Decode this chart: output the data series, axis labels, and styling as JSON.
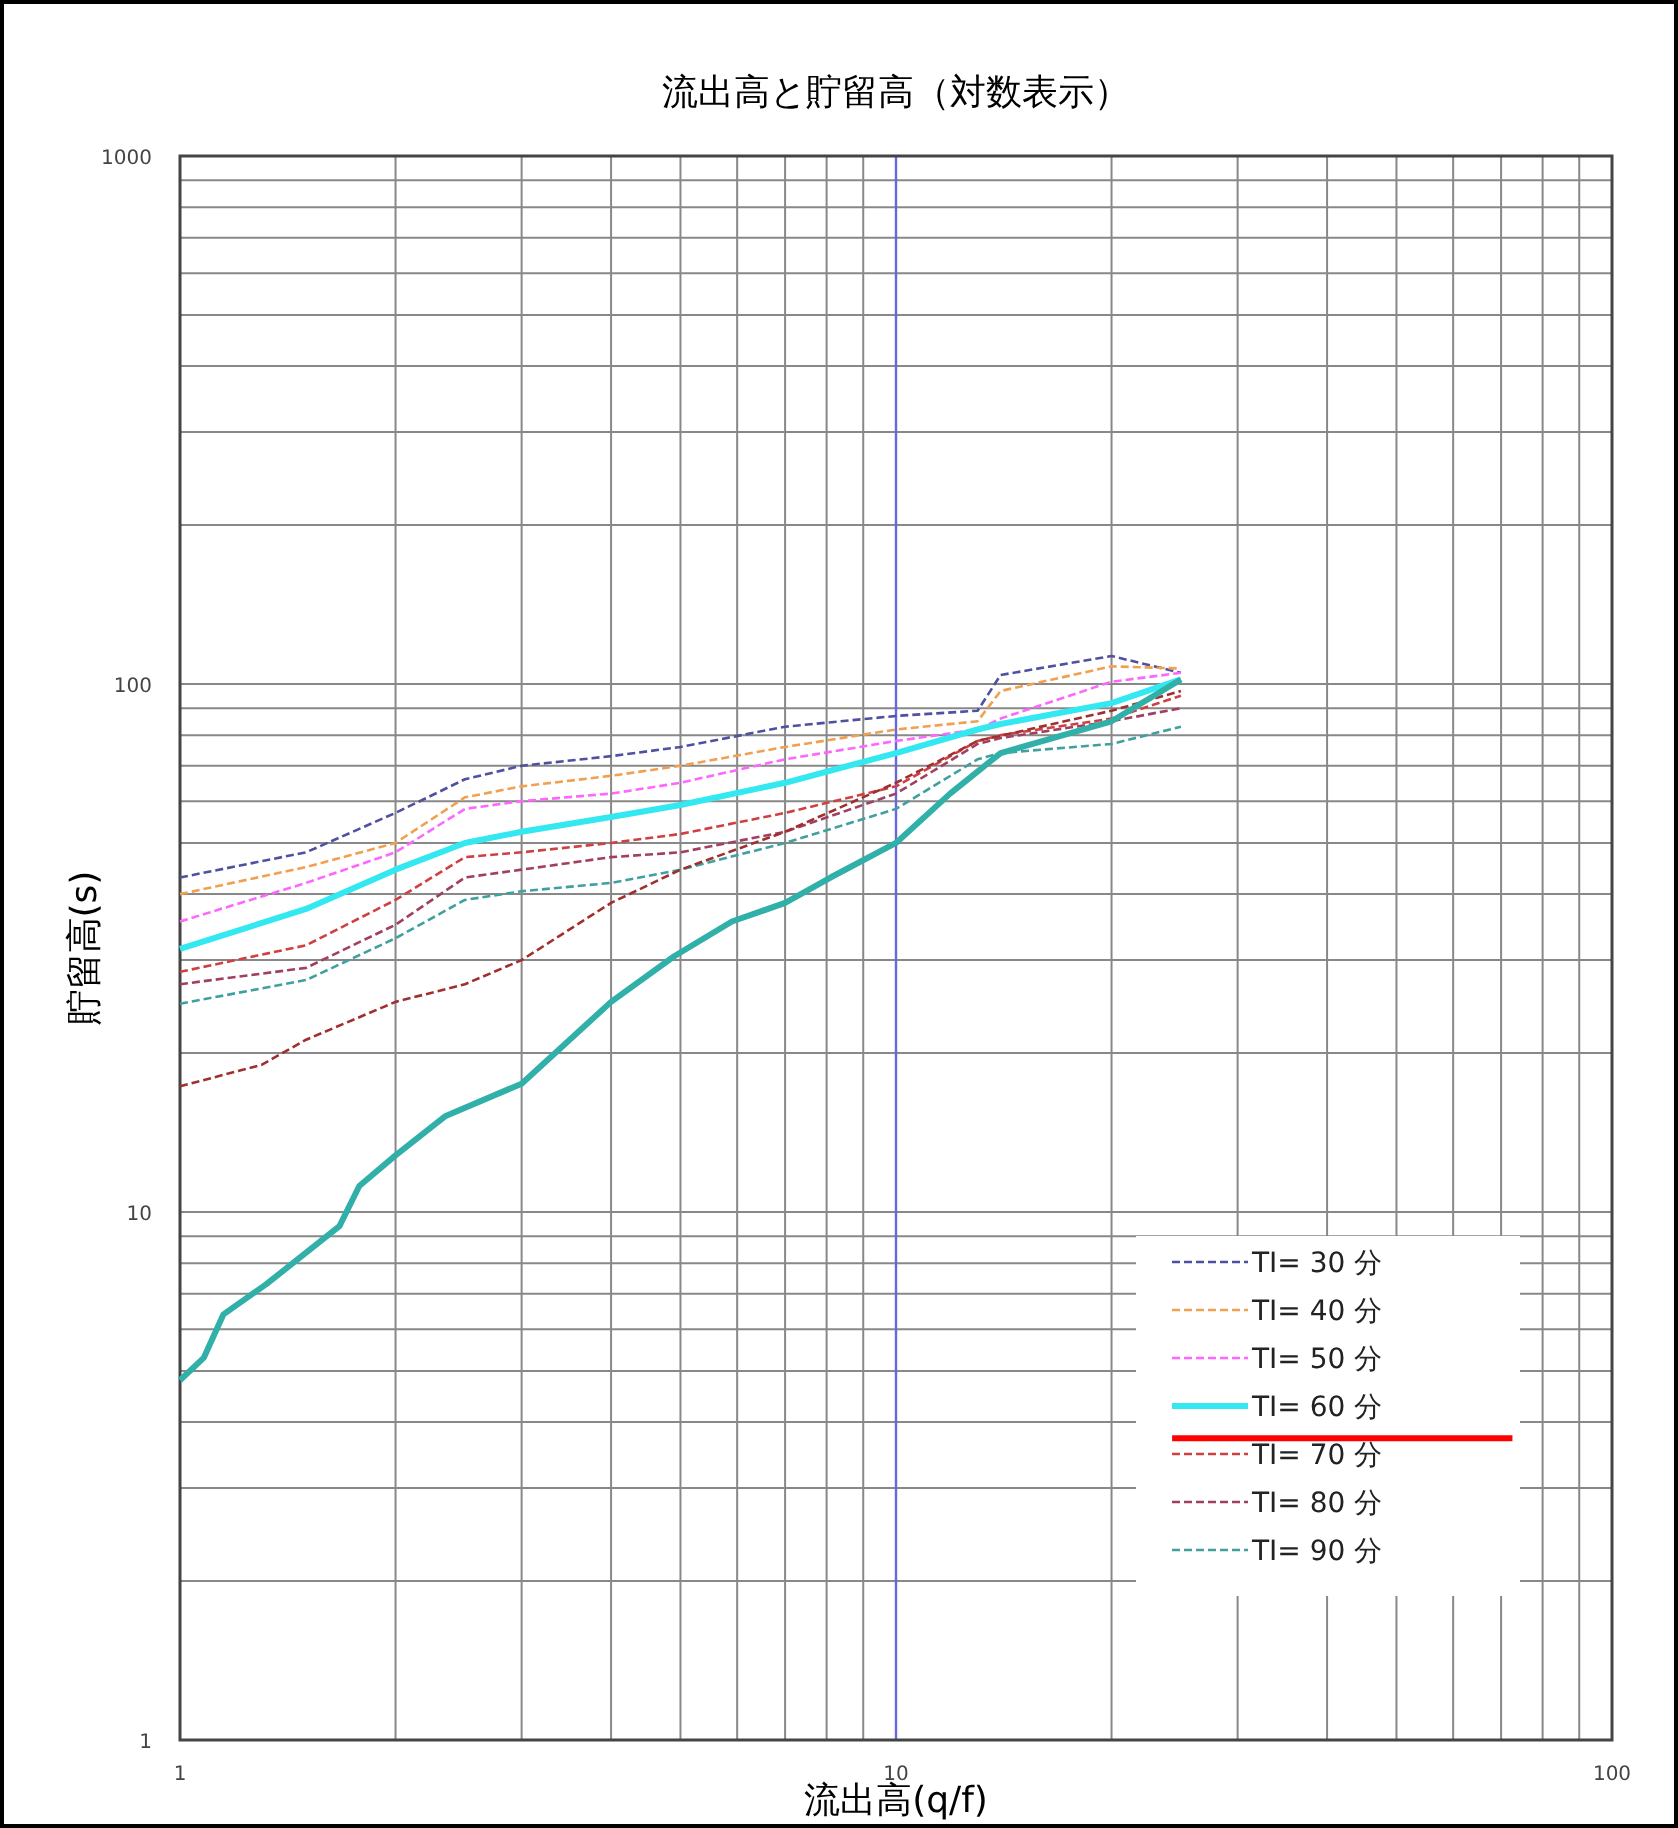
{
  "chart_data": {
    "type": "line",
    "title": "流出高と貯留高（対数表示）",
    "xlabel": "流出高(q/f)",
    "ylabel": "貯留高(s)",
    "log": "xy",
    "xlim": [
      1,
      100
    ],
    "ylim": [
      1,
      1000
    ],
    "xticks": [
      1,
      10,
      100
    ],
    "yticks": [
      1,
      10,
      100,
      1000
    ],
    "grid": true,
    "legend": "bottom right",
    "ref_lines": [
      {
        "axis": "x",
        "value": 10,
        "color": "#6666dd"
      }
    ],
    "x": [
      1,
      1.5,
      2,
      2.5,
      3,
      4,
      5,
      7,
      10,
      13,
      14,
      20,
      25
    ],
    "series": [
      {
        "name": "TI= 30  分",
        "color": "#5050a0",
        "line_style": "dashed",
        "values": [
          43,
          48,
          57,
          66,
          70,
          73,
          76,
          83,
          87,
          89,
          104,
          113,
          105
        ]
      },
      {
        "name": "TI= 40  分",
        "color": "#f0a050",
        "line_style": "dashed",
        "values": [
          40,
          45,
          50,
          61,
          64,
          67,
          70,
          76,
          82,
          85,
          97,
          108,
          107
        ]
      },
      {
        "name": "TI= 50  分",
        "color": "#ff66ff",
        "line_style": "dashed",
        "values": [
          35.5,
          42,
          48,
          58,
          60,
          62,
          65,
          72,
          78,
          82,
          86,
          101,
          105
        ]
      },
      {
        "name": "TI= 60  分",
        "color": "#33e8f0",
        "line_style": "solid",
        "values": [
          31.5,
          37.5,
          44.5,
          50,
          52.5,
          56,
          59,
          65,
          74,
          82,
          84,
          92,
          102
        ]
      },
      {
        "name": "TI= 70  分",
        "color": "#d04040",
        "line_style": "dashed",
        "values": [
          28.5,
          32,
          39,
          47,
          48,
          50,
          52,
          57,
          64,
          78,
          80,
          86,
          95
        ]
      },
      {
        "name": "TI= 80  分",
        "color": "#a04060",
        "line_style": "dashed",
        "values": [
          27,
          29,
          35,
          43,
          44.5,
          47,
          48,
          52.5,
          62,
          77,
          79,
          85,
          90
        ]
      },
      {
        "name": "TI= 90  分",
        "color": "#40a0a0",
        "line_style": "dashed",
        "values": [
          24.8,
          27.5,
          33,
          39,
          40.5,
          42,
          44.5,
          50,
          58,
          72,
          74,
          77,
          83
        ]
      },
      {
        "color": "#a03030",
        "line_style": "dashed",
        "x": [
          1,
          1.3,
          1.5,
          2,
          2.5,
          3,
          4,
          5,
          7,
          10,
          13,
          20,
          25
        ],
        "values": [
          17.3,
          19,
          21.2,
          25,
          27,
          30,
          38.5,
          44.5,
          52.5,
          65,
          78,
          89,
          97
        ]
      },
      {
        "color": "#ff0000",
        "line_style": "solid",
        "x": [
          24.3,
          72.6
        ],
        "values": [
          3.73,
          3.73
        ]
      },
      {
        "color": "#30b0a8",
        "line_style": "solid",
        "x": [
          1,
          1.08,
          1.15,
          1.32,
          1.67,
          1.78,
          2,
          2.35,
          3,
          4,
          4.9,
          5.9,
          7,
          8.1,
          10,
          11.9,
          14,
          20,
          25
        ],
        "values": [
          4.8,
          5.3,
          6.4,
          7.3,
          9.4,
          11.2,
          12.8,
          15.2,
          17.5,
          25,
          30.5,
          35.5,
          38.5,
          43,
          50,
          62,
          74,
          85,
          102
        ]
      }
    ]
  }
}
